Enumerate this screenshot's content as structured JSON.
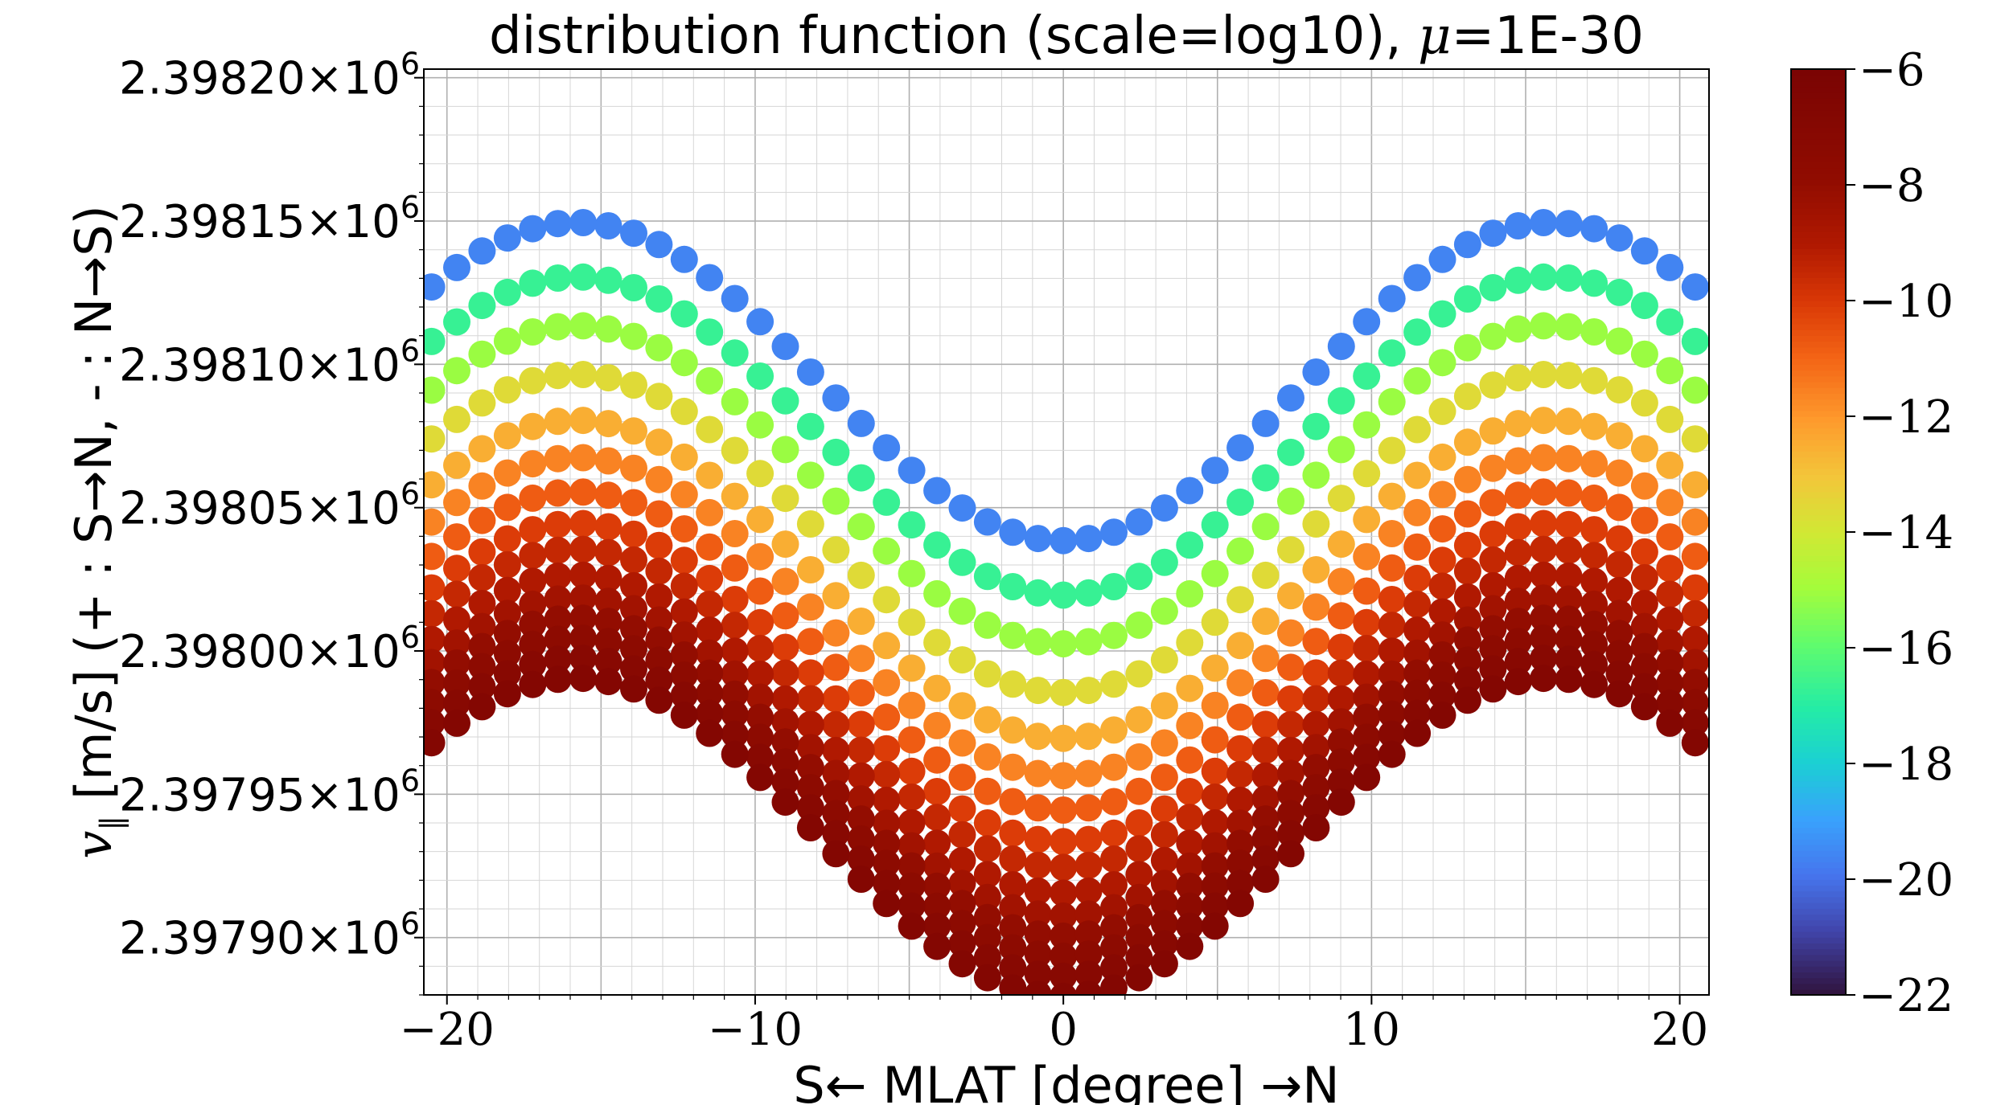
{
  "chart_data": {
    "type": "scatter",
    "title": "distribution function (scale=log10), μ=1E-30",
    "title_parts": {
      "main": "distribution function (scale=log10), ",
      "mu_symbol": "μ",
      "mu_value": "=1E-30"
    },
    "xlabel": "S← MLAT [degree] →N",
    "ylabel": "v∥ [m/s] (+ : S→N, - : N→S)",
    "ylabel_parts": {
      "symbol": "v",
      "subscript": "∥",
      "rest": " [m/s] (+ : S→N, - : N→S)"
    },
    "xlim": [
      -20.75,
      20.95
    ],
    "ylim": [
      2397880,
      2398203
    ],
    "x_ticks": [
      -20,
      -10,
      0,
      10,
      20
    ],
    "x_tick_labels": [
      "−20",
      "−10",
      "0",
      "10",
      "20"
    ],
    "y_ticks": [
      2397900,
      2397950,
      2398000,
      2398050,
      2398100,
      2398150,
      2398200
    ],
    "y_tick_labels": [
      {
        "mantissa": "2.39790",
        "times": "×10",
        "exp": "6"
      },
      {
        "mantissa": "2.39795",
        "times": "×10",
        "exp": "6"
      },
      {
        "mantissa": "2.39800",
        "times": "×10",
        "exp": "6"
      },
      {
        "mantissa": "2.39805",
        "times": "×10",
        "exp": "6"
      },
      {
        "mantissa": "2.39810",
        "times": "×10",
        "exp": "6"
      },
      {
        "mantissa": "2.39815",
        "times": "×10",
        "exp": "6"
      },
      {
        "mantissa": "2.39820",
        "times": "×10",
        "exp": "6"
      }
    ],
    "grid": true,
    "minor_grid": true,
    "colormap": "turbo",
    "colorbar": {
      "range": [
        -22,
        -6
      ],
      "ticks": [
        -6,
        -8,
        -10,
        -12,
        -14,
        -16,
        -18,
        -20,
        -22
      ],
      "tick_labels": [
        "−6",
        "−8",
        "−10",
        "−12",
        "−14",
        "−16",
        "−18",
        "−20",
        "−22"
      ]
    },
    "x_values_step": 0.82,
    "x_values_range": [
      -20.5,
      20.5
    ],
    "series": [
      {
        "level": -19.6,
        "center_v": 2398094,
        "amplitude": 55.5
      },
      {
        "level": -16.7,
        "center_v": 2398075,
        "amplitude": 55.5
      },
      {
        "level": -15.1,
        "center_v": 2398058,
        "amplitude": 55.5
      },
      {
        "level": -13.6,
        "center_v": 2398041,
        "amplitude": 55.5
      },
      {
        "level": -12.5,
        "center_v": 2398025,
        "amplitude": 55.5
      },
      {
        "level": -11.6,
        "center_v": 2398012,
        "amplitude": 55.5
      },
      {
        "level": -10.8,
        "center_v": 2398000,
        "amplitude": 55.5
      },
      {
        "level": -10.1,
        "center_v": 2397989,
        "amplitude": 55.5
      },
      {
        "level": -9.5,
        "center_v": 2397980,
        "amplitude": 55.5
      },
      {
        "level": -9.0,
        "center_v": 2397971,
        "amplitude": 55.5
      },
      {
        "level": -8.5,
        "center_v": 2397963,
        "amplitude": 55.5
      },
      {
        "level": -8.0,
        "center_v": 2397956,
        "amplitude": 55.5
      },
      {
        "level": -7.6,
        "center_v": 2397949,
        "amplitude": 55.5
      },
      {
        "level": -7.2,
        "center_v": 2397942,
        "amplitude": 55.5
      },
      {
        "level": -6.8,
        "center_v": 2397935,
        "amplitude": 55.5
      }
    ]
  }
}
